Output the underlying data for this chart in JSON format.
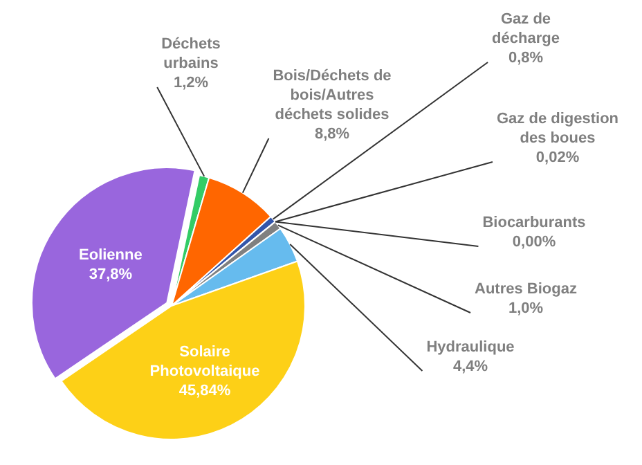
{
  "chart_data": {
    "type": "pie",
    "categories": [
      "Déchets urbains",
      "Bois/Déchets de bois/Autres déchets solides",
      "Gaz de décharge",
      "Gaz de digestion des boues",
      "Biocarburants",
      "Autres Biogaz",
      "Hydraulique",
      "Solaire Photovoltaique",
      "Eolienne"
    ],
    "values": [
      1.2,
      8.8,
      0.8,
      0.02,
      0.0,
      1.0,
      4.4,
      45.84,
      37.8
    ],
    "value_labels": [
      "1,2%",
      "8,8%",
      "0,8%",
      "0,02%",
      "0,00%",
      "1,0%",
      "4,4%",
      "45,84%",
      "37,8%"
    ],
    "colors": [
      "#33cc66",
      "#ff6600",
      "#3355aa",
      "#cc6600",
      "#99cc33",
      "#808080",
      "#66bbee",
      "#fdd017",
      "#9966dd"
    ],
    "legend": false
  }
}
